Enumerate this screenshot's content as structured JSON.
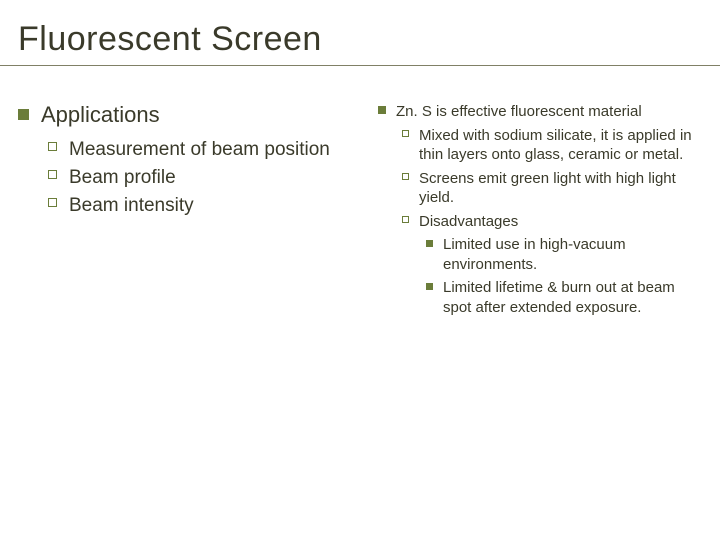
{
  "title": "Fluorescent Screen",
  "left": {
    "heading": "Applications",
    "items": [
      "Measurement of beam position",
      "Beam profile",
      "Beam intensity"
    ]
  },
  "right": {
    "heading": "Zn. S is effective fluorescent material",
    "subitems": [
      "Mixed with sodium silicate, it is applied in thin layers onto glass, ceramic or metal.",
      "Screens emit green light with high light yield.",
      "Disadvantages"
    ],
    "disadv": [
      "Limited use in high-vacuum environments.",
      "Limited lifetime & burn out at beam spot after extended exposure."
    ]
  },
  "colors": {
    "bullet": "#6b7d3a",
    "text": "#3a3a2a",
    "rule": "#808066"
  }
}
